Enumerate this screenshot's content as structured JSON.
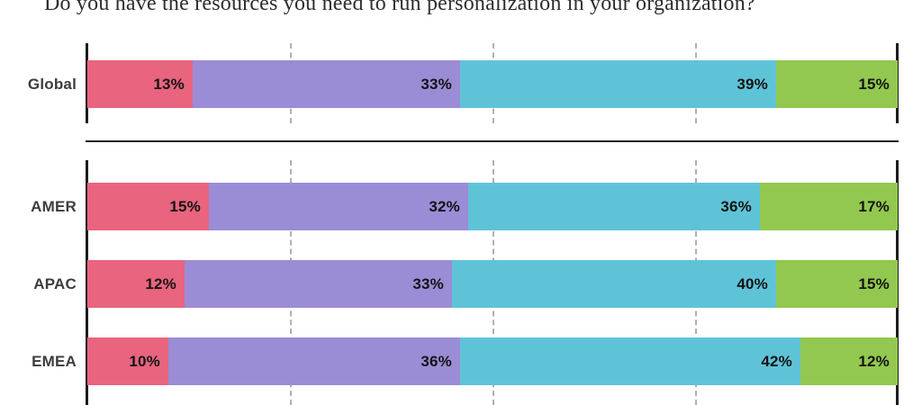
{
  "title": "Do you have the resources you need to run personalization in your organization?",
  "chart_data": {
    "type": "bar",
    "variant": "stacked-horizontal",
    "unit": "%",
    "title": "Do you have the resources you need to run personalization in your organization?",
    "legend": "none",
    "axis": {
      "min": 0,
      "max": 100,
      "gridlines_pct": [
        25,
        50,
        75
      ],
      "gridline_style": "dashed",
      "edge_lines": "solid-black"
    },
    "groups": [
      {
        "name": "global",
        "categories": [
          "Global"
        ]
      },
      {
        "name": "regions",
        "categories": [
          "AMER",
          "APAC",
          "EMEA"
        ]
      }
    ],
    "categories": [
      "Global",
      "AMER",
      "APAC",
      "EMEA"
    ],
    "series": [
      {
        "name": "pink",
        "color": "#E8647F",
        "values": [
          13,
          15,
          12,
          10
        ]
      },
      {
        "name": "purple",
        "color": "#9B8CD6",
        "values": [
          33,
          32,
          33,
          36
        ]
      },
      {
        "name": "teal",
        "color": "#5FC3D8",
        "values": [
          39,
          36,
          40,
          42
        ]
      },
      {
        "name": "green",
        "color": "#92C84F",
        "values": [
          15,
          17,
          15,
          12
        ]
      }
    ],
    "value_labels": [
      {
        "category": "Global",
        "values": [
          "13%",
          "33%",
          "39%",
          "15%"
        ]
      },
      {
        "category": "AMER",
        "values": [
          "15%",
          "32%",
          "36%",
          "17%"
        ]
      },
      {
        "category": "APAC",
        "values": [
          "12%",
          "33%",
          "40%",
          "15%"
        ]
      },
      {
        "category": "EMEA",
        "values": [
          "10%",
          "36%",
          "42%",
          "12%"
        ]
      }
    ],
    "labels_position": "inside-right"
  },
  "colors": {
    "background": "#ffffff",
    "axis": "#1c1c1c",
    "gridline": "#b0b0b0",
    "divider": "#1c1c1c",
    "title_text": "#2e2e2e",
    "category_label": "#3d3d3d",
    "value_label": "#141414"
  }
}
